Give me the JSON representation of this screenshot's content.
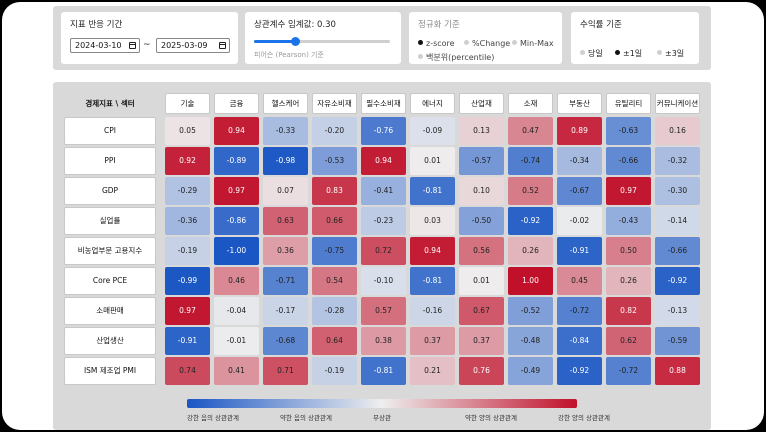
{
  "filters": {
    "period": {
      "title": "지표 반응 기간",
      "start": "2024-03-10",
      "separator": "~",
      "end": "2025-03-09"
    },
    "threshold": {
      "title_prefix": "상관계수 임계값:",
      "value": 0.3,
      "value_label": "0.30",
      "fill_fraction": 0.3,
      "caption": "피어슨 (Pearson) 기준"
    },
    "normalization": {
      "title": "정규화 기준",
      "options": [
        "z-score",
        "%Change",
        "Min-Max",
        "백분위(percentile)"
      ],
      "selected": "z-score"
    },
    "returns": {
      "title": "수익률 기준",
      "options": [
        "당일",
        "±1일",
        "±3일"
      ],
      "selected": "±1일"
    }
  },
  "heatmap": {
    "corner_label": "경제지표 \\ 섹터",
    "sectors": [
      "기술",
      "금융",
      "헬스케어",
      "자유소비재",
      "필수소비재",
      "에너지",
      "산업재",
      "소재",
      "부동산",
      "유틸리티",
      "커뮤니케이션"
    ],
    "indicators": [
      "CPI",
      "PPI",
      "GDP",
      "실업률",
      "비농업부문 고용지수",
      "Core PCE",
      "소매판매",
      "산업생산",
      "ISM 제조업 PMI"
    ],
    "values": [
      [
        0.05,
        0.94,
        -0.33,
        -0.2,
        -0.76,
        -0.09,
        0.13,
        0.47,
        0.89,
        -0.63,
        0.16
      ],
      [
        0.92,
        -0.89,
        -0.98,
        -0.53,
        0.94,
        0.01,
        -0.57,
        -0.74,
        -0.34,
        -0.66,
        -0.32
      ],
      [
        -0.29,
        0.97,
        0.07,
        0.83,
        -0.41,
        -0.81,
        0.1,
        0.52,
        -0.67,
        0.97,
        -0.3
      ],
      [
        -0.36,
        -0.86,
        0.63,
        0.66,
        -0.23,
        0.03,
        -0.5,
        -0.92,
        -0.02,
        -0.43,
        -0.14
      ],
      [
        -0.19,
        -1.0,
        0.36,
        -0.75,
        0.72,
        0.94,
        0.56,
        0.26,
        -0.91,
        0.5,
        -0.66
      ],
      [
        -0.99,
        0.46,
        -0.71,
        0.54,
        -0.1,
        -0.81,
        0.01,
        1.0,
        0.45,
        0.26,
        -0.92
      ],
      [
        0.97,
        -0.04,
        -0.17,
        -0.28,
        0.57,
        -0.16,
        0.67,
        -0.52,
        -0.72,
        0.82,
        -0.13
      ],
      [
        -0.91,
        -0.01,
        -0.68,
        0.64,
        0.38,
        0.37,
        0.37,
        -0.48,
        -0.84,
        0.62,
        -0.59
      ],
      [
        0.74,
        0.41,
        0.71,
        -0.19,
        -0.81,
        0.21,
        0.76,
        -0.49,
        -0.92,
        -0.72,
        0.88
      ]
    ],
    "colors": {
      "negative": "#1a56c4",
      "neutral": "#eeeeee",
      "positive": "#c0102a"
    }
  },
  "legend": {
    "labels": [
      "강한 음의 상관관계",
      "약한 음의 상관관계",
      "무상관",
      "약한 양의 상관관계",
      "강한 양의 상관관계"
    ]
  }
}
